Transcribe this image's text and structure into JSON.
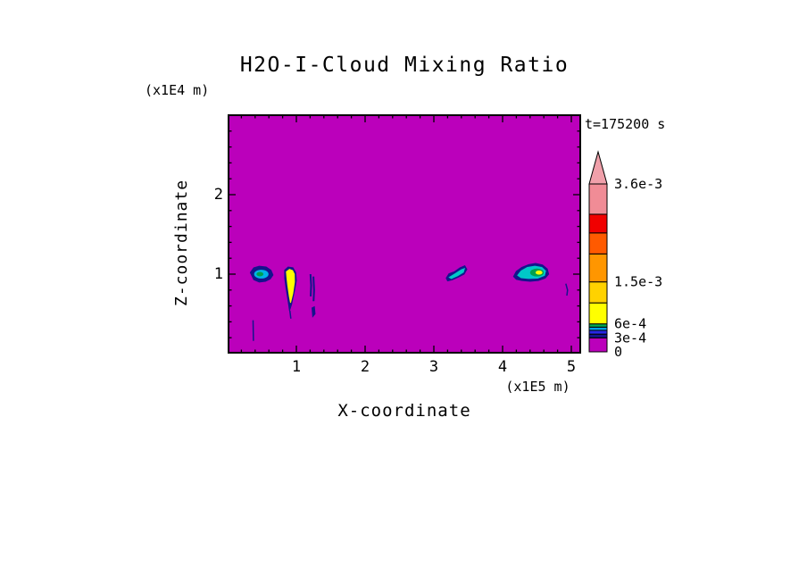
{
  "title": "H2O-I-Cloud Mixing Ratio",
  "time_label": "t=175200 s",
  "axes": {
    "x_label": "X-coordinate",
    "x_unit_label": "(x1E5 m)",
    "y_label": "Z-coordinate",
    "y_unit_label": "(x1E4 m)"
  },
  "chart_data": {
    "type": "heatmap",
    "title": "H2O-I-Cloud Mixing Ratio",
    "xlabel": "X-coordinate",
    "x_unit": "x1E5 m",
    "ylabel": "Z-coordinate",
    "y_unit": "x1E4 m",
    "time_annotation": "t=175200 s",
    "x_range": [
      0,
      5.14
    ],
    "y_range": [
      0,
      3.01
    ],
    "x_major_ticks": [
      1,
      2,
      3,
      4,
      5
    ],
    "x_minor_step": 0.2,
    "y_major_ticks": [
      1,
      2
    ],
    "y_minor_step": 0.2,
    "background_color": "#BB00BB",
    "frame_color": "#000000",
    "colorbar": {
      "max_value": 0.0036,
      "overflow_color": "#F0A0AA",
      "labels": [
        {
          "text": "3.6e-3",
          "value": 0.0036
        },
        {
          "text": "1.5e-3",
          "value": 0.0015
        },
        {
          "text": "6e-4",
          "value": 0.0006
        },
        {
          "text": "3e-4",
          "value": 0.0003
        },
        {
          "text": "0",
          "value": 0
        }
      ],
      "segments": [
        {
          "from": 0,
          "to": 0.0003,
          "color": "#BB00BB"
        },
        {
          "from": 0.0003,
          "to": 0.00038,
          "color": "#14148C"
        },
        {
          "from": 0.00038,
          "to": 0.00046,
          "color": "#2828E6"
        },
        {
          "from": 0.00046,
          "to": 0.00053,
          "color": "#00A0E6"
        },
        {
          "from": 0.00053,
          "to": 0.0006,
          "color": "#00AA50"
        },
        {
          "from": 0.0006,
          "to": 0.00105,
          "color": "#FFFF00"
        },
        {
          "from": 0.00105,
          "to": 0.0015,
          "color": "#FFD200"
        },
        {
          "from": 0.0015,
          "to": 0.0021,
          "color": "#FF9600"
        },
        {
          "from": 0.0021,
          "to": 0.00255,
          "color": "#FF5A00"
        },
        {
          "from": 0.00255,
          "to": 0.00295,
          "color": "#F00000"
        },
        {
          "from": 0.00295,
          "to": 0.0036,
          "color": "#F08C96"
        }
      ]
    },
    "features": [
      {
        "name": "left-cloud-outline",
        "type": "polygon",
        "color": "#14148C",
        "points": [
          [
            0.33,
            1.02
          ],
          [
            0.38,
            1.08
          ],
          [
            0.46,
            1.1
          ],
          [
            0.56,
            1.09
          ],
          [
            0.63,
            1.05
          ],
          [
            0.66,
            0.99
          ],
          [
            0.62,
            0.94
          ],
          [
            0.55,
            0.91
          ],
          [
            0.46,
            0.9
          ],
          [
            0.38,
            0.93
          ]
        ]
      },
      {
        "name": "left-cloud-core",
        "type": "ellipse",
        "color": "#00B4E6",
        "cx": 0.49,
        "cy": 1.0,
        "rx": 0.105,
        "ry": 0.055
      },
      {
        "name": "left-cloud-inner",
        "type": "ellipse",
        "color": "#00A050",
        "cx": 0.47,
        "cy": 1.0,
        "rx": 0.05,
        "ry": 0.028
      },
      {
        "name": "plume-outline",
        "type": "polygon",
        "color": "#14148C",
        "points": [
          [
            0.83,
            1.05
          ],
          [
            0.88,
            1.09
          ],
          [
            0.95,
            1.08
          ],
          [
            0.99,
            1.02
          ],
          [
            1.0,
            0.92
          ],
          [
            0.97,
            0.78
          ],
          [
            0.93,
            0.62
          ],
          [
            0.9,
            0.54
          ],
          [
            0.88,
            0.66
          ],
          [
            0.85,
            0.82
          ],
          [
            0.83,
            0.95
          ]
        ]
      },
      {
        "name": "plume-core",
        "type": "polygon",
        "color": "#FFFF00",
        "points": [
          [
            0.855,
            1.03
          ],
          [
            0.9,
            1.06
          ],
          [
            0.945,
            1.045
          ],
          [
            0.97,
            1.0
          ],
          [
            0.972,
            0.9
          ],
          [
            0.948,
            0.76
          ],
          [
            0.915,
            0.64
          ],
          [
            0.898,
            0.72
          ],
          [
            0.875,
            0.86
          ],
          [
            0.862,
            0.96
          ]
        ]
      },
      {
        "name": "plume-tail",
        "type": "line",
        "color": "#14148C",
        "width": 1.5,
        "points": [
          [
            0.905,
            0.54
          ],
          [
            0.92,
            0.44
          ]
        ]
      },
      {
        "name": "streak-1",
        "type": "line",
        "color": "#14148C",
        "width": 2,
        "points": [
          [
            1.205,
            1.0
          ],
          [
            1.215,
            0.86
          ],
          [
            1.208,
            0.72
          ]
        ]
      },
      {
        "name": "streak-2",
        "type": "line",
        "color": "#14148C",
        "width": 2,
        "points": [
          [
            1.248,
            0.97
          ],
          [
            1.258,
            0.8
          ],
          [
            1.25,
            0.66
          ]
        ]
      },
      {
        "name": "streak-blob",
        "type": "polygon",
        "color": "#14148C",
        "points": [
          [
            1.228,
            0.575
          ],
          [
            1.262,
            0.59
          ],
          [
            1.272,
            0.5
          ],
          [
            1.238,
            0.465
          ]
        ]
      },
      {
        "name": "left-thin-streak",
        "type": "line",
        "color": "#14148C",
        "width": 1.5,
        "points": [
          [
            0.37,
            0.42
          ],
          [
            0.375,
            0.16
          ]
        ]
      },
      {
        "name": "mid-cloud-outline",
        "type": "polygon",
        "color": "#14148C",
        "points": [
          [
            3.18,
            0.95
          ],
          [
            3.22,
            1.005
          ],
          [
            3.3,
            1.03
          ],
          [
            3.38,
            1.08
          ],
          [
            3.45,
            1.105
          ],
          [
            3.48,
            1.06
          ],
          [
            3.44,
            1.0
          ],
          [
            3.36,
            0.965
          ],
          [
            3.27,
            0.93
          ],
          [
            3.2,
            0.915
          ]
        ]
      },
      {
        "name": "mid-cloud-core",
        "type": "polygon",
        "color": "#00C8C8",
        "points": [
          [
            3.225,
            0.96
          ],
          [
            3.31,
            1.005
          ],
          [
            3.4,
            1.055
          ],
          [
            3.445,
            1.07
          ],
          [
            3.43,
            1.025
          ],
          [
            3.345,
            0.98
          ],
          [
            3.255,
            0.945
          ]
        ]
      },
      {
        "name": "right-cloud-outline",
        "type": "polygon",
        "color": "#14148C",
        "points": [
          [
            4.16,
            0.97
          ],
          [
            4.2,
            1.035
          ],
          [
            4.28,
            1.085
          ],
          [
            4.38,
            1.12
          ],
          [
            4.48,
            1.135
          ],
          [
            4.58,
            1.115
          ],
          [
            4.65,
            1.065
          ],
          [
            4.67,
            1.0
          ],
          [
            4.62,
            0.95
          ],
          [
            4.52,
            0.92
          ],
          [
            4.4,
            0.91
          ],
          [
            4.28,
            0.92
          ],
          [
            4.2,
            0.935
          ]
        ]
      },
      {
        "name": "right-cloud-core",
        "type": "polygon",
        "color": "#00C8C8",
        "points": [
          [
            4.22,
            0.985
          ],
          [
            4.27,
            1.04
          ],
          [
            4.36,
            1.085
          ],
          [
            4.47,
            1.1
          ],
          [
            4.57,
            1.085
          ],
          [
            4.625,
            1.04
          ],
          [
            4.61,
            0.985
          ],
          [
            4.51,
            0.95
          ],
          [
            4.38,
            0.945
          ],
          [
            4.27,
            0.955
          ]
        ]
      },
      {
        "name": "right-cloud-green",
        "type": "ellipse",
        "color": "#00A050",
        "cx": 4.5,
        "cy": 1.02,
        "rx": 0.1,
        "ry": 0.05
      },
      {
        "name": "right-cloud-yellow",
        "type": "ellipse",
        "color": "#FFFF00",
        "cx": 4.53,
        "cy": 1.02,
        "rx": 0.05,
        "ry": 0.026
      },
      {
        "name": "right-thin-streak",
        "type": "line",
        "color": "#14148C",
        "width": 1.5,
        "points": [
          [
            4.92,
            0.88
          ],
          [
            4.945,
            0.8
          ],
          [
            4.935,
            0.73
          ]
        ]
      }
    ]
  }
}
